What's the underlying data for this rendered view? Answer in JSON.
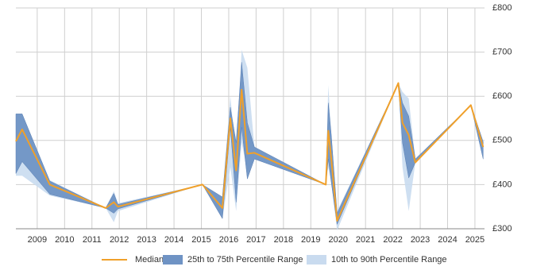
{
  "chart_data": {
    "type": "line",
    "x": [
      2008.22,
      2008.45,
      2009.46,
      2011.5,
      2011.8,
      2011.95,
      2015.04,
      2015.77,
      2016.06,
      2016.27,
      2016.47,
      2016.68,
      2016.94,
      2019.55,
      2019.64,
      2019.75,
      2019.96,
      2022.2,
      2022.35,
      2022.58,
      2022.82,
      2024.85,
      2025.3
    ],
    "series": [
      {
        "name": "Median",
        "color": "#f0a02a",
        "values": [
          498,
          525,
          400,
          347,
          360,
          350,
          400,
          347,
          550,
          432,
          615,
          470,
          472,
          400,
          522,
          458,
          318,
          630,
          540,
          512,
          450,
          580,
          485
        ]
      },
      {
        "name": "25th to 75th Percentile Range",
        "color": "#6f93c4",
        "low": [
          425,
          452,
          378,
          347,
          335,
          345,
          400,
          323,
          530,
          360,
          530,
          413,
          458,
          400,
          458,
          405,
          310,
          630,
          495,
          415,
          450,
          580,
          458
        ],
        "high": [
          560,
          560,
          408,
          347,
          380,
          355,
          400,
          372,
          575,
          495,
          677,
          540,
          485,
          400,
          585,
          512,
          335,
          630,
          585,
          555,
          458,
          580,
          497
        ]
      },
      {
        "name": "10th to 90th Percentile Range",
        "color": "#c9dbef",
        "low": [
          420,
          420,
          375,
          347,
          315,
          340,
          400,
          323,
          440,
          340,
          495,
          432,
          458,
          400,
          440,
          405,
          296,
          630,
          440,
          340,
          450,
          580,
          458
        ],
        "high": [
          560,
          560,
          410,
          347,
          385,
          358,
          400,
          372,
          600,
          460,
          705,
          665,
          485,
          400,
          625,
          512,
          340,
          630,
          610,
          595,
          458,
          580,
          497
        ]
      }
    ],
    "xlim": [
      2008.22,
      2025.35
    ],
    "xticks": [
      2009,
      2010,
      2011,
      2012,
      2013,
      2014,
      2015,
      2016,
      2017,
      2018,
      2019,
      2020,
      2021,
      2022,
      2023,
      2024,
      2025
    ],
    "ylim": [
      300,
      800
    ],
    "yticks": [
      {
        "value": 300,
        "label": "£300"
      },
      {
        "value": 400,
        "label": "£400"
      },
      {
        "value": 500,
        "label": "£500"
      },
      {
        "value": 600,
        "label": "£600"
      },
      {
        "value": 700,
        "label": "£700"
      },
      {
        "value": 800,
        "label": "£800"
      }
    ],
    "grid": true
  }
}
